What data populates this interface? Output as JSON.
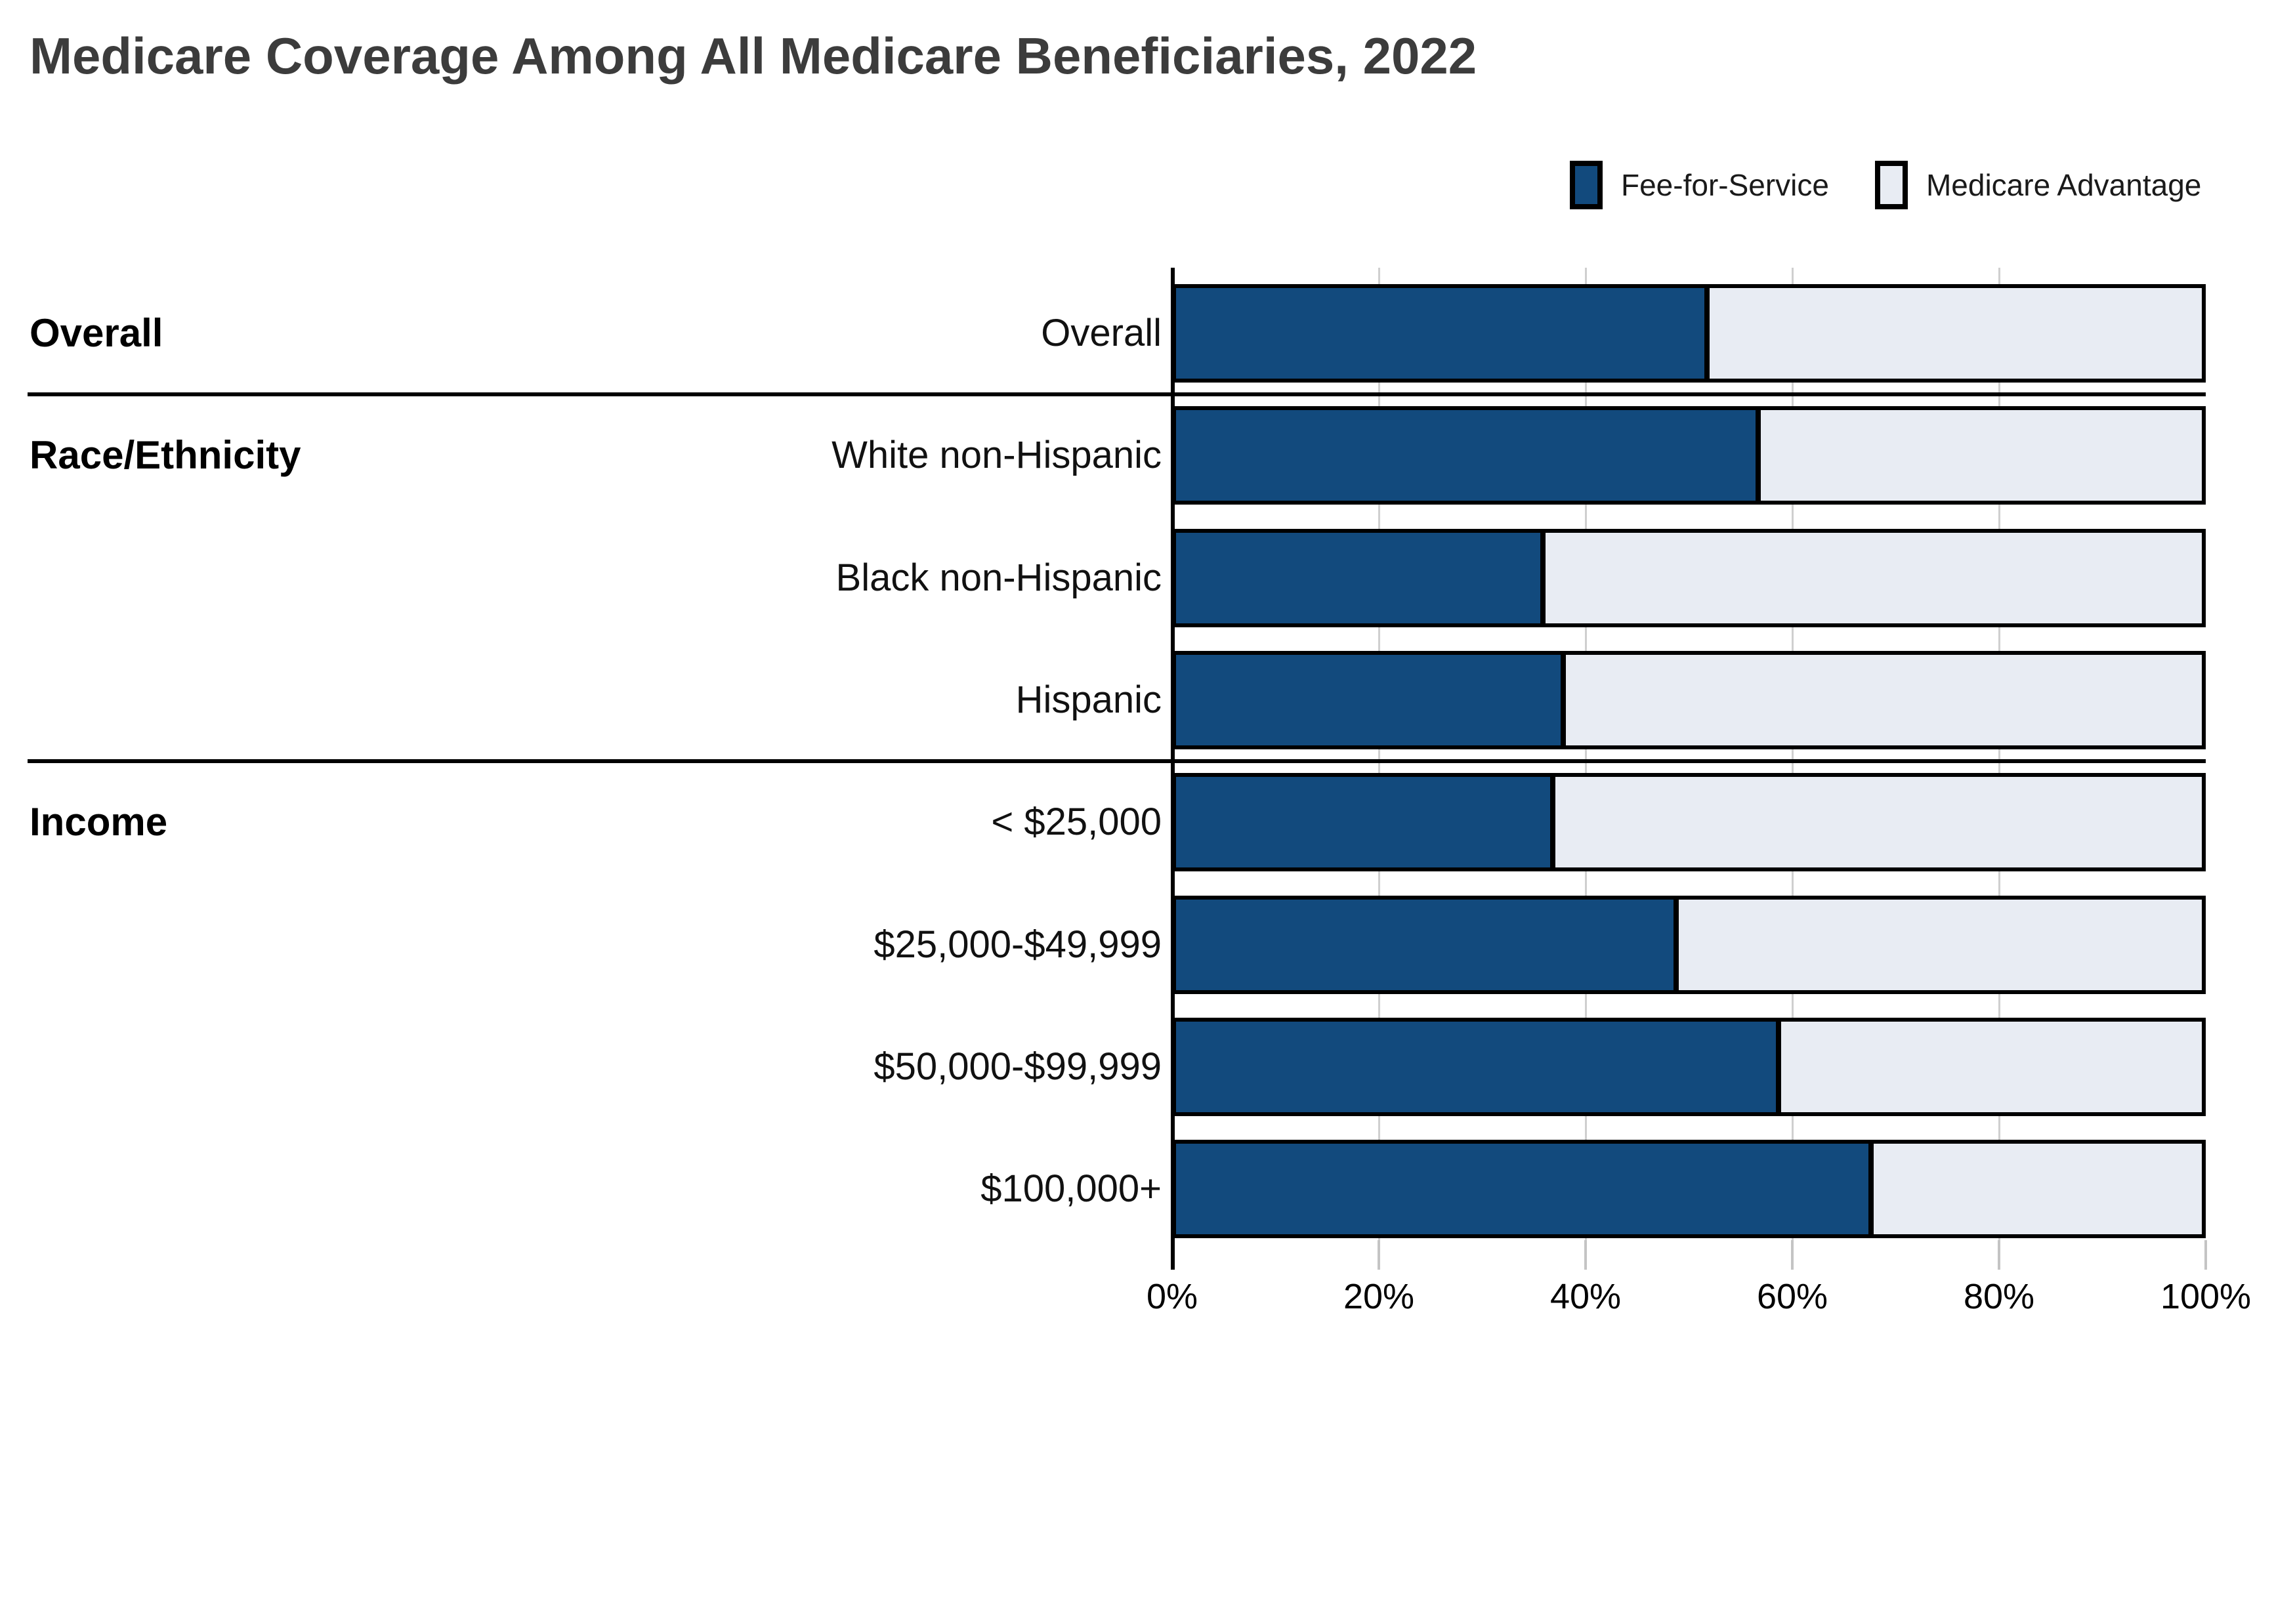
{
  "title": "Medicare Coverage Among All Medicare Beneficiaries, 2022",
  "legend": [
    {
      "label": "Fee-for-Service",
      "color": "#124a7d"
    },
    {
      "label": "Medicare Advantage",
      "color": "#e8ecf3"
    }
  ],
  "colors": {
    "fee_for_service": "#124a7d",
    "medicare_advantage": "#e8ecf3",
    "border": "#000000",
    "gridline": "#cfcfcf",
    "tick": "#c4c4c4",
    "title_text": "#3c3c3c"
  },
  "chart_data": {
    "type": "bar",
    "orientation": "horizontal",
    "stacked": true,
    "unit": "percent",
    "title": "Medicare Coverage Among All Medicare Beneficiaries, 2022",
    "xlabel": "",
    "ylabel": "",
    "xlim": [
      0,
      100
    ],
    "grid": true,
    "legend_position": "top-right",
    "categories": [
      "Overall",
      "White non-Hispanic",
      "Black non-Hispanic",
      "Hispanic",
      "< $25,000",
      "$25,000-$49,999",
      "$50,000-$99,999",
      "$100,000+"
    ],
    "groups": [
      {
        "label": "Overall",
        "rows": [
          0
        ]
      },
      {
        "label": "Race/Ethnicity",
        "rows": [
          1,
          2,
          3
        ]
      },
      {
        "label": "Income",
        "rows": [
          4,
          5,
          6,
          7
        ]
      }
    ],
    "series": [
      {
        "name": "Fee-for-Service",
        "values": [
          52,
          57,
          36,
          38,
          37,
          49,
          59,
          68
        ]
      },
      {
        "name": "Medicare Advantage",
        "values": [
          48,
          43,
          64,
          62,
          63,
          51,
          41,
          32
        ]
      }
    ],
    "x_ticks": [
      {
        "label": "0%",
        "value": 0
      },
      {
        "label": "20%",
        "value": 20
      },
      {
        "label": "40%",
        "value": 40
      },
      {
        "label": "60%",
        "value": 60
      },
      {
        "label": "80%",
        "value": 80
      },
      {
        "label": "100%",
        "value": 100
      }
    ]
  }
}
